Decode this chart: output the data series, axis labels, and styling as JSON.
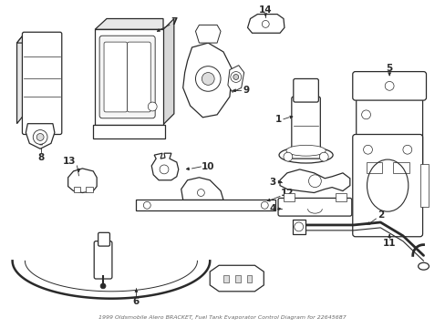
{
  "title": "1999 Oldsmobile Alero BRACKET, Fuel Tank Evaporator Control Diagram for 22645687",
  "bg_color": "#ffffff",
  "line_color": "#2a2a2a",
  "figw": 4.89,
  "figh": 3.6,
  "dpi": 100
}
